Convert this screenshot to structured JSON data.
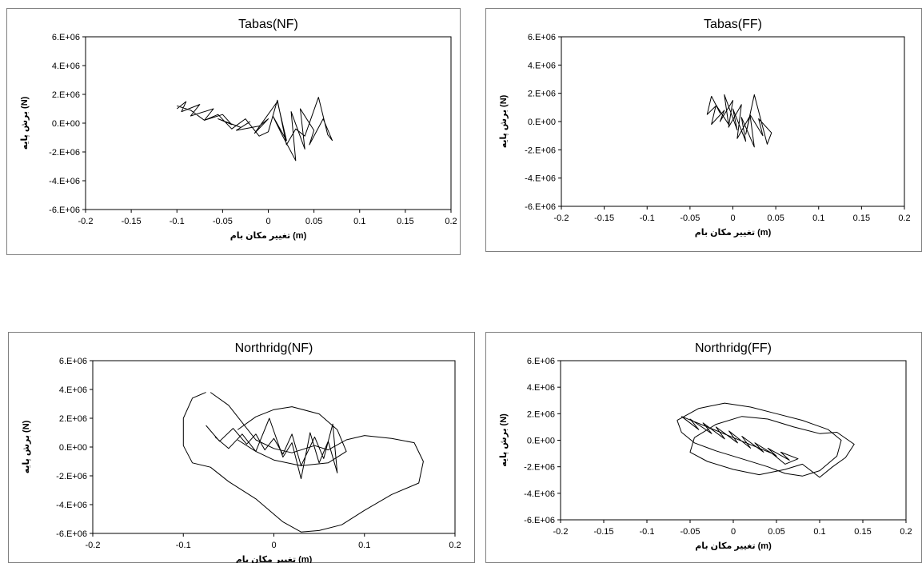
{
  "chart_data": [
    {
      "type": "line",
      "title": "Tabas(NF)",
      "xlabel": "تغییر مکان بام (m)",
      "ylabel": "برش پایه (N)",
      "xlim": [
        -0.2,
        0.2
      ],
      "ylim": [
        -6000000,
        6000000
      ],
      "xticks": [
        "-0.2",
        "-0.15",
        "-0.1",
        "-0.05",
        "0",
        "0.05",
        "0.1",
        "0.15",
        "0.2"
      ],
      "yticks": [
        "6.E+06",
        "4.E+06",
        "2.E+06",
        "0.E+00",
        "-2.E+06",
        "-4.E+06",
        "-6.E+06"
      ],
      "grid": false,
      "series": [
        {
          "x": [
            -0.1,
            -0.09,
            -0.095,
            -0.075,
            -0.085,
            -0.06,
            -0.07,
            -0.05,
            -0.04,
            -0.055,
            -0.03,
            -0.02,
            -0.035,
            -0.01,
            0.0,
            -0.015,
            0.01,
            0.02,
            0.005,
            0.015,
            0.03,
            0.025,
            0.04,
            0.035,
            0.05,
            0.045,
            0.06,
            0.07,
            0.065,
            0.055,
            0.04,
            0.03,
            0.02,
            0.01,
            0.0,
            -0.01,
            -0.025,
            -0.04,
            -0.055,
            -0.07,
            -0.085,
            -0.1
          ],
          "y": [
            1000000,
            1500000,
            800000,
            1300000,
            500000,
            1000000,
            200000,
            600000,
            -100000,
            300000,
            -300000,
            100000,
            -500000,
            -200000,
            300000,
            -700000,
            1500000,
            -1200000,
            500000,
            -800000,
            -2600000,
            800000,
            -1800000,
            1000000,
            -500000,
            -1500000,
            300000,
            -1200000,
            -800000,
            1800000,
            -900000,
            -400000,
            -1500000,
            1600000,
            -600000,
            -900000,
            300000,
            -400000,
            600000,
            200000,
            900000,
            1200000
          ]
        }
      ]
    },
    {
      "type": "line",
      "title": "Tabas(FF)",
      "xlabel": "تغییر مکان بام (m)",
      "ylabel": "برش پایه (N)",
      "xlim": [
        -0.2,
        0.2
      ],
      "ylim": [
        -6000000,
        6000000
      ],
      "xticks": [
        "-0.2",
        "-0.15",
        "-0.1",
        "-0.05",
        "0",
        "0.05",
        "0.1",
        "0.15",
        "0.2"
      ],
      "yticks": [
        "6.E+06",
        "4.E+06",
        "2.E+06",
        "0.E+00",
        "-2.E+06",
        "-4.E+06",
        "-6.E+06"
      ],
      "grid": false,
      "series": [
        {
          "x": [
            -0.025,
            -0.015,
            -0.02,
            -0.005,
            -0.01,
            0.005,
            0.0,
            0.015,
            0.01,
            0.025,
            0.02,
            0.035,
            0.03,
            0.045,
            0.04,
            0.025,
            0.015,
            0.02,
            0.005,
            0.01,
            -0.005,
            0.0,
            -0.015,
            -0.01,
            -0.025,
            -0.02,
            -0.03,
            -0.025
          ],
          "y": [
            1800000,
            600000,
            1200000,
            -200000,
            1900000,
            -600000,
            900000,
            -1400000,
            300000,
            -1800000,
            500000,
            -1000000,
            200000,
            -800000,
            -1600000,
            1900000,
            -900000,
            400000,
            -1200000,
            1200000,
            -400000,
            1500000,
            0,
            800000,
            -200000,
            1100000,
            500000,
            1800000
          ]
        }
      ]
    },
    {
      "type": "line",
      "title": "Northridg(NF)",
      "xlabel": "تغییر مکان بام (m)",
      "ylabel": "برش پایه (N)",
      "xlim": [
        -0.2,
        0.2
      ],
      "ylim": [
        -6000000,
        6000000
      ],
      "xticks": [
        "-0.2",
        "-0.1",
        "0",
        "0.1",
        "0.2"
      ],
      "yticks": [
        "6.E+06",
        "4.E+06",
        "2.E+06",
        "0.E+00",
        "-2.E+06",
        "-4.E+06",
        "-6.E+06"
      ],
      "grid": false,
      "series": [
        {
          "x": [
            -0.07,
            -0.05,
            -0.035,
            -0.02,
            0.0,
            0.02,
            0.045,
            0.06,
            0.08,
            0.1,
            0.13,
            0.155,
            0.165,
            0.16,
            0.13,
            0.1,
            0.075,
            0.05,
            0.03,
            0.01,
            -0.02,
            -0.05,
            -0.07,
            -0.09,
            -0.1,
            -0.1,
            -0.09,
            -0.075
          ],
          "y": [
            3800000,
            2900000,
            1700000,
            500000,
            -100000,
            -400000,
            100000,
            -200000,
            500000,
            800000,
            600000,
            300000,
            -1000000,
            -2500000,
            -3300000,
            -4400000,
            -5400000,
            -5800000,
            -5900000,
            -5200000,
            -3600000,
            -2400000,
            -1400000,
            -1100000,
            100000,
            2000000,
            3400000,
            3800000
          ]
        },
        {
          "x": [
            -0.075,
            -0.06,
            -0.045,
            -0.03,
            -0.02,
            -0.01,
            0.0,
            0.01,
            0.02,
            0.03,
            0.045,
            0.055,
            0.065,
            0.07,
            0.06,
            0.05,
            0.04,
            0.03,
            0.02,
            0.01,
            -0.005,
            -0.02,
            -0.035,
            -0.05,
            -0.065
          ],
          "y": [
            1500000,
            400000,
            1300000,
            200000,
            900000,
            -200000,
            600000,
            -500000,
            900000,
            -1300000,
            700000,
            -800000,
            1600000,
            -1800000,
            400000,
            -1100000,
            1000000,
            -2200000,
            300000,
            -700000,
            2000000,
            -300000,
            900000,
            -100000,
            700000
          ]
        },
        {
          "x": [
            -0.04,
            -0.02,
            0.0,
            0.02,
            0.05,
            0.07,
            0.08,
            0.06,
            0.03,
            0.0,
            -0.02,
            -0.04
          ],
          "y": [
            1200000,
            2100000,
            2600000,
            2800000,
            2300000,
            1200000,
            -300000,
            -1100000,
            -1300000,
            -900000,
            -300000,
            500000
          ]
        }
      ]
    },
    {
      "type": "line",
      "title": "Northridg(FF)",
      "xlabel": "تغییر مکان بام (m)",
      "ylabel": "برش پایه (N)",
      "xlim": [
        -0.2,
        0.2
      ],
      "ylim": [
        -6000000,
        6000000
      ],
      "xticks": [
        "-0.2",
        "-0.15",
        "-0.1",
        "-0.05",
        "0",
        "0.05",
        "0.1",
        "0.15",
        "0.2"
      ],
      "yticks": [
        "6.E+06",
        "4.E+06",
        "2.E+06",
        "0.E+00",
        "-2.E+06",
        "-4.E+06",
        "-6.E+06"
      ],
      "grid": false,
      "series": [
        {
          "x": [
            -0.06,
            -0.04,
            -0.05,
            -0.025,
            -0.035,
            -0.01,
            -0.02,
            0.005,
            -0.005,
            0.02,
            0.01,
            0.035,
            0.025,
            0.05,
            0.04,
            0.065,
            0.055,
            0.075,
            0.06,
            0.045,
            0.03,
            0.015,
            0.0,
            -0.015,
            -0.03,
            -0.045,
            -0.06
          ],
          "y": [
            1800000,
            800000,
            1600000,
            500000,
            1300000,
            100000,
            1000000,
            -200000,
            700000,
            -600000,
            300000,
            -900000,
            -200000,
            -1200000,
            -600000,
            -1500000,
            -900000,
            -1400000,
            -1800000,
            -1000000,
            -600000,
            -200000,
            200000,
            600000,
            1000000,
            1400000,
            1800000
          ]
        },
        {
          "x": [
            -0.065,
            -0.04,
            -0.01,
            0.02,
            0.05,
            0.08,
            0.11,
            0.125,
            0.12,
            0.1,
            0.08,
            0.06,
            0.04,
            0.01,
            -0.02,
            -0.045,
            -0.06,
            -0.065
          ],
          "y": [
            1500000,
            2400000,
            2800000,
            2500000,
            2000000,
            1500000,
            800000,
            0,
            -1200000,
            -2300000,
            -2700000,
            -2500000,
            -2000000,
            -1400000,
            -800000,
            -200000,
            600000,
            1500000
          ]
        },
        {
          "x": [
            -0.045,
            -0.02,
            0.01,
            0.04,
            0.07,
            0.1,
            0.12,
            0.14,
            0.13,
            0.115,
            0.1,
            0.08,
            0.06,
            0.03,
            0.0,
            -0.03,
            -0.05,
            -0.045
          ],
          "y": [
            200000,
            1200000,
            1800000,
            1600000,
            1000000,
            500000,
            600000,
            -300000,
            -1300000,
            -2000000,
            -2800000,
            -1800000,
            -2200000,
            -2600000,
            -2200000,
            -1600000,
            -900000,
            200000
          ]
        }
      ]
    }
  ]
}
